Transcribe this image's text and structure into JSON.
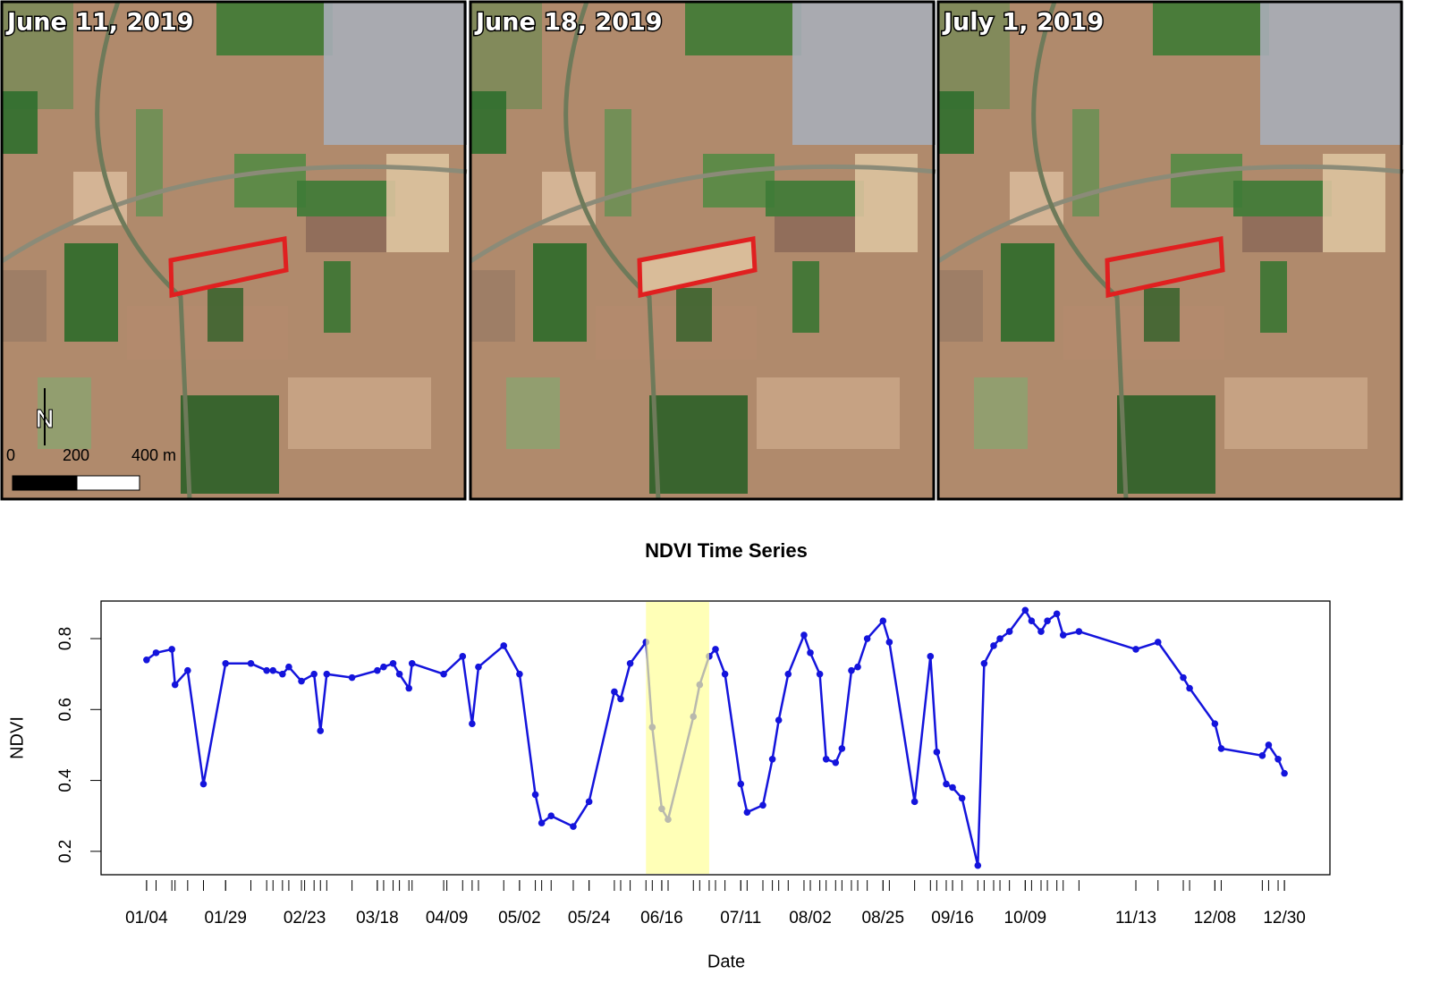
{
  "panels": [
    {
      "label": "June 11, 2019"
    },
    {
      "label": "June 18, 2019"
    },
    {
      "label": "July 1, 2019"
    }
  ],
  "scale_bar": {
    "north": "N",
    "labels": [
      "0",
      "200",
      "400 m"
    ]
  },
  "chart_data": {
    "type": "line",
    "title": "NDVI Time Series",
    "x_label": "Date",
    "y_label": "NDVI",
    "x": [
      "01/04",
      "01/07",
      "01/12",
      "01/13",
      "01/17",
      "01/22",
      "01/29",
      "02/06",
      "02/11",
      "02/13",
      "02/16",
      "02/18",
      "02/22",
      "02/26",
      "02/28",
      "03/02",
      "03/10",
      "03/18",
      "03/20",
      "03/23",
      "03/25",
      "03/28",
      "03/29",
      "04/08",
      "04/14",
      "04/17",
      "04/19",
      "04/27",
      "05/02",
      "05/07",
      "05/09",
      "05/12",
      "05/19",
      "05/24",
      "06/01",
      "06/03",
      "06/06",
      "06/11",
      "06/13",
      "06/16",
      "06/18",
      "06/26",
      "06/28",
      "07/01",
      "07/03",
      "07/06",
      "07/11",
      "07/13",
      "07/18",
      "07/21",
      "07/23",
      "07/26",
      "07/31",
      "08/02",
      "08/05",
      "08/07",
      "08/10",
      "08/12",
      "08/15",
      "08/17",
      "08/20",
      "08/25",
      "08/27",
      "09/04",
      "09/09",
      "09/11",
      "09/14",
      "09/16",
      "09/19",
      "09/24",
      "09/26",
      "09/29",
      "10/01",
      "10/04",
      "10/09",
      "10/11",
      "10/14",
      "10/16",
      "10/19",
      "10/21",
      "10/26",
      "11/13",
      "11/20",
      "11/28",
      "11/30",
      "12/08",
      "12/10",
      "12/23",
      "12/25",
      "12/28",
      "12/30"
    ],
    "series": [
      {
        "name": "NDVI",
        "color": "#1414dc",
        "values": [
          0.74,
          0.76,
          0.77,
          0.67,
          0.71,
          0.39,
          0.73,
          0.73,
          0.71,
          0.71,
          0.7,
          0.72,
          0.68,
          0.7,
          0.54,
          0.7,
          0.69,
          0.71,
          0.72,
          0.73,
          0.7,
          0.66,
          0.73,
          0.7,
          0.75,
          0.56,
          0.72,
          0.78,
          0.7,
          0.36,
          0.28,
          0.3,
          0.27,
          0.34,
          0.65,
          0.63,
          0.73,
          0.79,
          0.55,
          0.32,
          0.29,
          0.58,
          0.67,
          0.75,
          0.77,
          0.7,
          0.39,
          0.31,
          0.33,
          0.46,
          0.57,
          0.7,
          0.81,
          0.76,
          0.7,
          0.46,
          0.45,
          0.49,
          0.71,
          0.72,
          0.8,
          0.85,
          0.79,
          0.34,
          0.75,
          0.48,
          0.39,
          0.38,
          0.35,
          0.16,
          0.73,
          0.78,
          0.8,
          0.82,
          0.88,
          0.85,
          0.82,
          0.85,
          0.87,
          0.81,
          0.82,
          0.77,
          0.79,
          0.69,
          0.66,
          0.56,
          0.49,
          0.47,
          0.5,
          0.46,
          0.42
        ]
      }
    ],
    "xticks": [
      "01/04",
      "01/29",
      "02/23",
      "03/18",
      "04/09",
      "05/02",
      "05/24",
      "06/16",
      "07/11",
      "08/02",
      "08/25",
      "09/16",
      "10/09",
      "11/13",
      "12/08",
      "12/30"
    ],
    "ylim": [
      0.134,
      0.906
    ],
    "yticks": [
      0.2,
      0.4,
      0.6,
      0.8
    ],
    "highlight": {
      "from": "06/11",
      "to": "07/01",
      "color": "#ffff99"
    }
  }
}
